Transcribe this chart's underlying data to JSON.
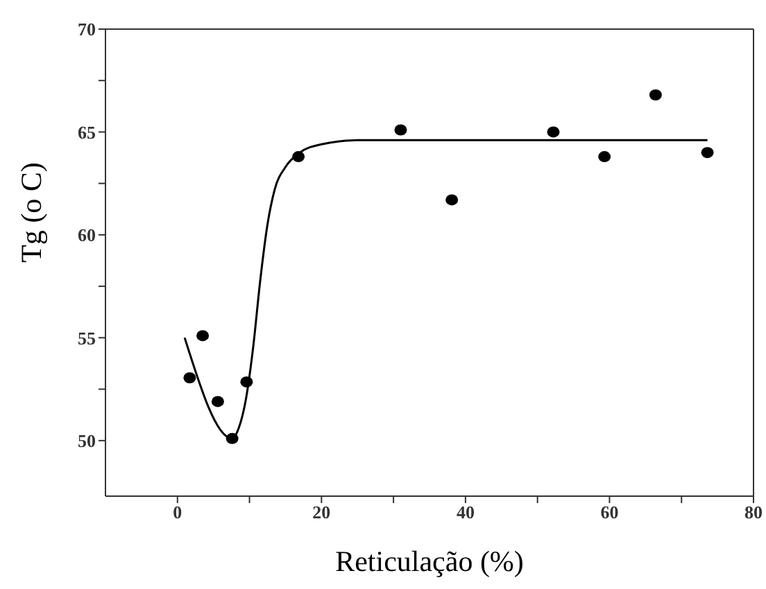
{
  "chart_data": {
    "type": "scatter",
    "xlabel": "Reticulação (%)",
    "ylabel": "Tg (o C)",
    "xlim": [
      -10,
      80
    ],
    "ylim": [
      47.3,
      70
    ],
    "xticks": [
      0,
      {
        "value": 10,
        "label": null
      },
      20,
      {
        "value": 30,
        "label": null
      },
      40,
      {
        "value": 50,
        "label": null
      },
      60,
      {
        "value": 70,
        "label": null
      },
      80
    ],
    "yticks": [
      50,
      {
        "value": 52.5,
        "label": null
      },
      55,
      {
        "value": 57.5,
        "label": null
      },
      60,
      {
        "value": 62.5,
        "label": null
      },
      65,
      {
        "value": 67.5,
        "label": null
      },
      70
    ],
    "marker": "circle",
    "series": [
      {
        "color": "#000000",
        "x": [
          1.7,
          3.5,
          5.6,
          7.6,
          9.6,
          16.8,
          31.0,
          38.1,
          52.2,
          59.3,
          66.4,
          73.6
        ],
        "values": [
          53.05,
          55.1,
          51.9,
          50.1,
          52.85,
          63.8,
          65.1,
          61.7,
          65.0,
          63.8,
          66.8,
          64.0
        ]
      },
      {
        "type": "line",
        "color": "#000000",
        "marker": "none",
        "line_style": "solid",
        "x": [
          1,
          7.6,
          8.5,
          9.5,
          10.5,
          11.5,
          12.5,
          13.5,
          15,
          17,
          20,
          25,
          73.6
        ],
        "values": [
          55,
          50.1,
          50.6,
          52,
          54.5,
          57.8,
          60.5,
          62.2,
          63.3,
          64,
          64.4,
          64.6,
          64.6
        ]
      }
    ]
  }
}
